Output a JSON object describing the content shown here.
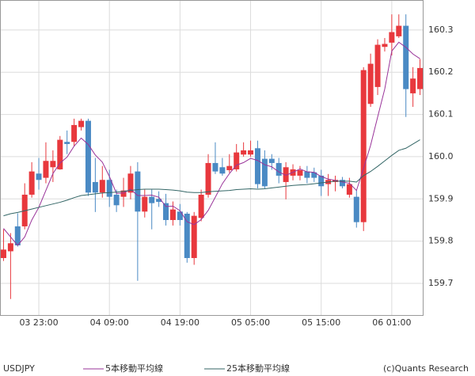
{
  "chart_data": {
    "type": "candlestick",
    "symbol": "USDJPY",
    "credit": "(c)Quants Research",
    "categories": [
      null,
      null,
      null,
      null,
      null,
      "03 23:00",
      null,
      null,
      null,
      null,
      null,
      null,
      null,
      null,
      null,
      "04 09:00",
      null,
      null,
      null,
      null,
      null,
      null,
      null,
      null,
      null,
      "04 19:00",
      null,
      null,
      null,
      null,
      null,
      null,
      null,
      null,
      null,
      "05 05:00",
      null,
      null,
      null,
      null,
      null,
      null,
      null,
      null,
      null,
      "05 15:00",
      null,
      null,
      null,
      null,
      null,
      null,
      null,
      null,
      null,
      "06 01:00",
      null,
      null,
      null,
      null
    ],
    "open": [
      159.76,
      159.776,
      159.835,
      159.835,
      159.91,
      159.96,
      159.95,
      159.975,
      159.97,
      160.035,
      160.035,
      160.07,
      160.085,
      159.94,
      159.915,
      159.945,
      159.91,
      159.905,
      159.915,
      159.965,
      159.87,
      159.905,
      159.9,
      159.89,
      159.85,
      159.87,
      159.865,
      159.76,
      159.855,
      159.91,
      159.985,
      159.975,
      159.968,
      159.97,
      160.005,
      160.005,
      160.02,
      159.995,
      159.995,
      159.985,
      159.94,
      159.955,
      159.955,
      159.965,
      159.963,
      159.955,
      159.935,
      159.94,
      159.945,
      159.91,
      159.905,
      159.845,
      160.125,
      160.165,
      160.26,
      160.27,
      160.285,
      160.31,
      160.15,
      160.16
    ],
    "high": [
      159.828,
      159.819,
      159.866,
      159.937,
      159.987,
      159.997,
      160.034,
      160.015,
      160.049,
      160.062,
      160.09,
      160.09,
      160.09,
      159.997,
      159.978,
      159.969,
      159.922,
      159.95,
      159.978,
      159.987,
      159.922,
      159.922,
      159.918,
      159.912,
      159.894,
      159.888,
      159.869,
      159.869,
      159.922,
      160.006,
      160.034,
      159.997,
      160.006,
      160.03,
      160.034,
      160.038,
      160.038,
      160.015,
      160.006,
      159.997,
      159.987,
      159.982,
      159.978,
      159.978,
      159.974,
      159.969,
      159.959,
      159.955,
      159.952,
      159.95,
      159.922,
      160.212,
      160.244,
      160.278,
      160.281,
      160.337,
      160.337,
      160.337,
      160.212,
      160.231
    ],
    "low": [
      159.753,
      159.663,
      159.787,
      159.828,
      159.903,
      159.922,
      159.937,
      159.94,
      159.969,
      160.006,
      160.025,
      160.062,
      159.907,
      159.869,
      159.903,
      159.881,
      159.869,
      159.881,
      159.899,
      159.706,
      159.856,
      159.828,
      159.881,
      159.837,
      159.837,
      159.837,
      159.749,
      159.744,
      159.847,
      159.903,
      159.959,
      159.955,
      159.962,
      159.965,
      160.0,
      160.0,
      159.925,
      159.925,
      159.969,
      159.937,
      159.899,
      159.944,
      159.944,
      159.937,
      159.94,
      159.907,
      159.907,
      159.918,
      159.925,
      159.903,
      159.832,
      159.824,
      160.118,
      160.146,
      160.249,
      160.24,
      160.281,
      160.094,
      160.118,
      160.146
    ],
    "close": [
      159.78,
      159.795,
      159.79,
      159.91,
      159.965,
      159.945,
      159.99,
      159.99,
      160.04,
      160.03,
      160.075,
      160.085,
      159.915,
      159.915,
      159.945,
      159.905,
      159.885,
      159.92,
      159.96,
      159.87,
      159.905,
      159.89,
      159.893,
      159.85,
      159.875,
      159.85,
      159.76,
      159.86,
      159.91,
      159.985,
      159.965,
      159.96,
      159.978,
      160.01,
      160.015,
      160.015,
      159.935,
      159.93,
      159.985,
      159.955,
      159.975,
      159.97,
      159.968,
      159.95,
      159.95,
      159.93,
      159.945,
      159.945,
      159.93,
      159.935,
      159.845,
      160.205,
      160.22,
      160.265,
      160.267,
      160.295,
      160.31,
      160.16,
      160.185,
      160.21
    ],
    "up_color": "#e8383d",
    "down_color": "#4a8ac4",
    "series": [
      {
        "name": "5本移動平均線",
        "color": "#993399",
        "values": [
          159.83,
          159.81,
          159.79,
          159.81,
          159.85,
          159.88,
          159.92,
          159.96,
          159.985,
          159.999,
          160.025,
          160.044,
          160.029,
          160.004,
          159.987,
          159.953,
          159.913,
          159.914,
          159.923,
          159.908,
          159.908,
          159.909,
          159.904,
          159.882,
          159.883,
          159.872,
          159.846,
          159.839,
          159.851,
          159.873,
          159.904,
          159.936,
          159.96,
          159.98,
          159.986,
          159.996,
          159.991,
          159.981,
          159.976,
          159.964,
          159.956,
          159.963,
          159.971,
          159.964,
          159.963,
          159.953,
          159.947,
          159.944,
          159.94,
          159.937,
          159.92,
          159.972,
          160.027,
          160.094,
          160.16,
          160.25,
          160.271,
          160.259,
          160.243,
          160.232
        ]
      },
      {
        "name": "25本移動平均線",
        "color": "#336666",
        "values": [
          159.86,
          159.865,
          159.868,
          159.872,
          159.876,
          159.88,
          159.884,
          159.888,
          159.892,
          159.897,
          159.903,
          159.908,
          159.91,
          159.912,
          159.914,
          159.915,
          159.916,
          159.918,
          159.92,
          159.922,
          159.923,
          159.923,
          159.923,
          159.922,
          159.921,
          159.919,
          159.916,
          159.915,
          159.915,
          159.917,
          159.918,
          159.919,
          159.92,
          159.922,
          159.923,
          159.924,
          159.923,
          159.924,
          159.926,
          159.928,
          159.93,
          159.932,
          159.933,
          159.934,
          159.936,
          159.938,
          159.94,
          159.942,
          159.942,
          159.942,
          159.94,
          159.955,
          159.965,
          159.977,
          159.99,
          160.003,
          160.015,
          160.02,
          160.03,
          160.04
        ]
      }
    ],
    "ylim": [
      159.625,
      160.371
    ],
    "yticks": [
      159.7,
      159.8,
      159.9,
      {
        "value": 160,
        "label": "160.0"
      },
      160.1,
      160.2,
      160.3
    ],
    "grid": true
  }
}
